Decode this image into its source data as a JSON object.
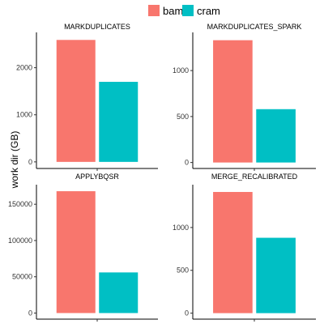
{
  "legend": {
    "items": [
      {
        "label": "bam",
        "color": "#F8766D"
      },
      {
        "label": "cram",
        "color": "#00BFC4"
      }
    ]
  },
  "ylabel": "work dir (GB)",
  "chart_data": [
    {
      "type": "bar",
      "title": "MARKDUPLICATES",
      "categories": [
        "bam",
        "cram"
      ],
      "values": [
        2590,
        1700
      ],
      "ylim": [
        -140,
        2750
      ],
      "yticks": [
        0,
        1000,
        2000
      ],
      "yticklabels": [
        "0",
        "1000",
        "2000"
      ],
      "grid": false
    },
    {
      "type": "bar",
      "title": "MARKDUPLICATES_SPARK",
      "categories": [
        "bam",
        "cram"
      ],
      "values": [
        1330,
        580
      ],
      "ylim": [
        -65,
        1415
      ],
      "yticks": [
        0,
        500,
        1000
      ],
      "yticklabels": [
        "0",
        "500",
        "1000"
      ],
      "grid": false
    },
    {
      "type": "bar",
      "title": "APPLYBQSR",
      "categories": [
        "bam",
        "cram"
      ],
      "values": [
        168000,
        56000
      ],
      "ylim": [
        -8400,
        177000
      ],
      "yticks": [
        0,
        50000,
        100000,
        150000
      ],
      "yticklabels": [
        "0",
        "50000",
        "100000",
        "150000"
      ],
      "grid": false
    },
    {
      "type": "bar",
      "title": "MERGE_RECALIBRATED",
      "categories": [
        "bam",
        "cram"
      ],
      "values": [
        1415,
        880
      ],
      "ylim": [
        -70,
        1500
      ],
      "yticks": [
        0,
        500,
        1000
      ],
      "yticklabels": [
        "0",
        "500",
        "1000"
      ],
      "grid": false
    }
  ]
}
